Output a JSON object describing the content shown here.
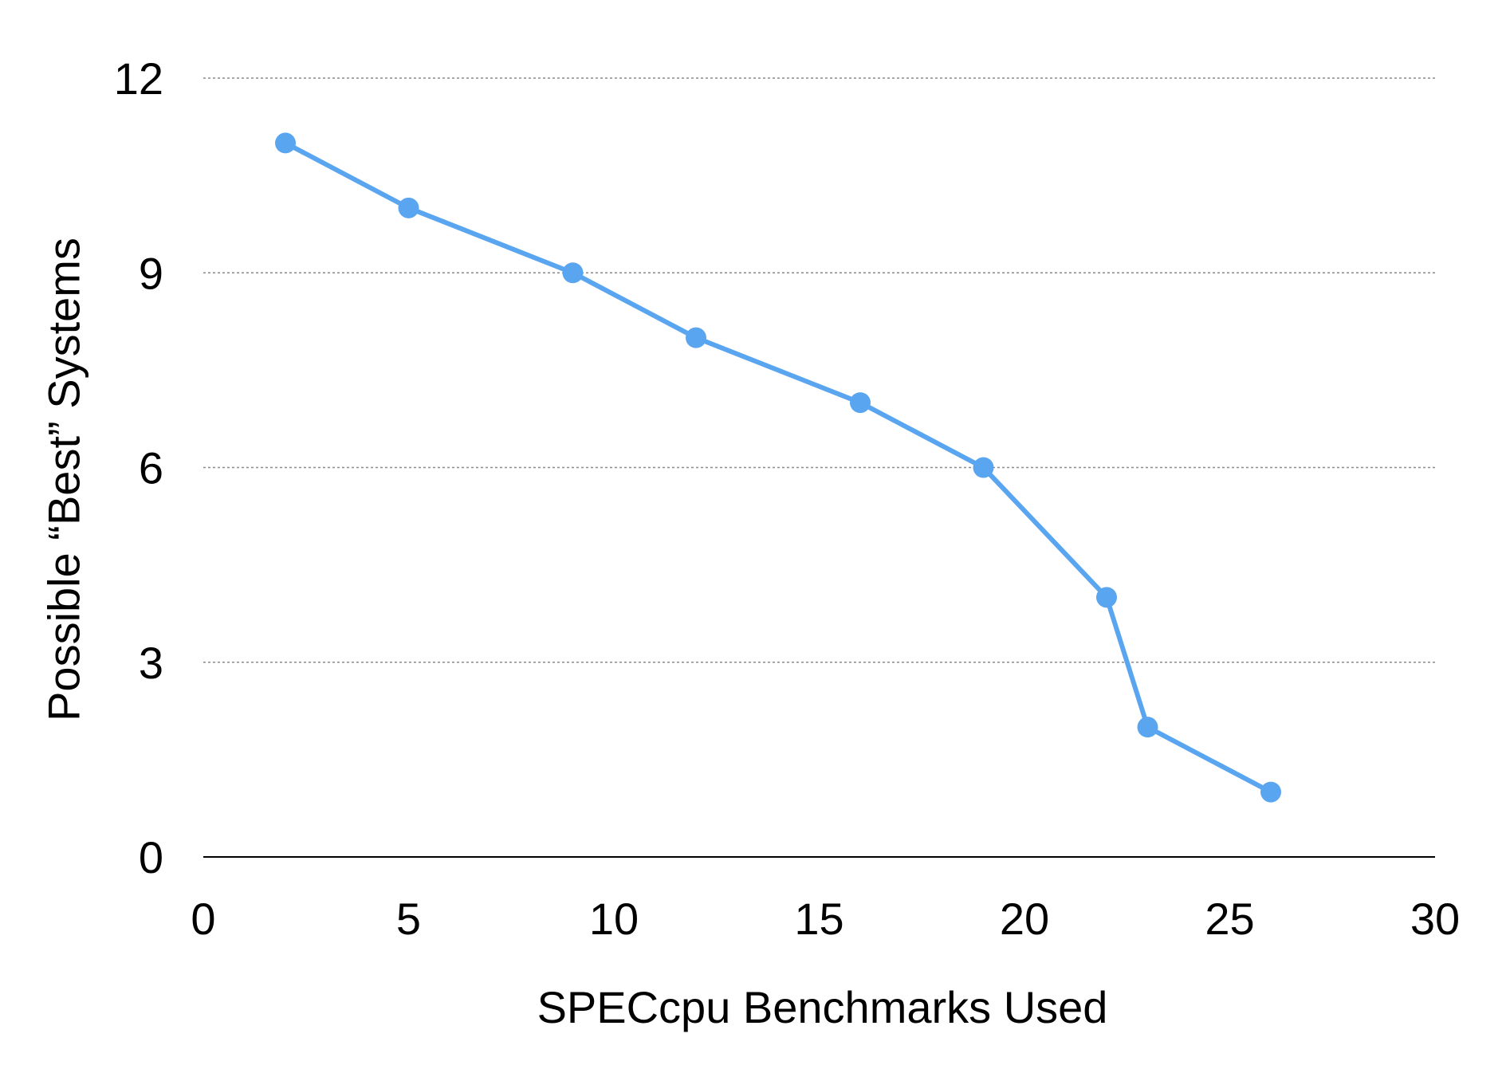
{
  "chart_data": {
    "type": "line",
    "title": "",
    "xlabel": "SPECcpu Benchmarks Used",
    "ylabel": "Possible “Best” Systems",
    "xlim": [
      0,
      30
    ],
    "ylim": [
      0,
      12
    ],
    "xticks": [
      0,
      5,
      10,
      15,
      20,
      25,
      30
    ],
    "yticks": [
      0,
      3,
      6,
      9,
      12
    ],
    "grid": "horizontal-dotted",
    "legend": "none",
    "series": [
      {
        "name": "Possible Best Systems",
        "color": "#5aa5f0",
        "x": [
          2,
          5,
          9,
          12,
          16,
          19,
          22,
          23,
          26
        ],
        "y": [
          11,
          10,
          9,
          8,
          7,
          6,
          4,
          2,
          1
        ]
      }
    ]
  }
}
